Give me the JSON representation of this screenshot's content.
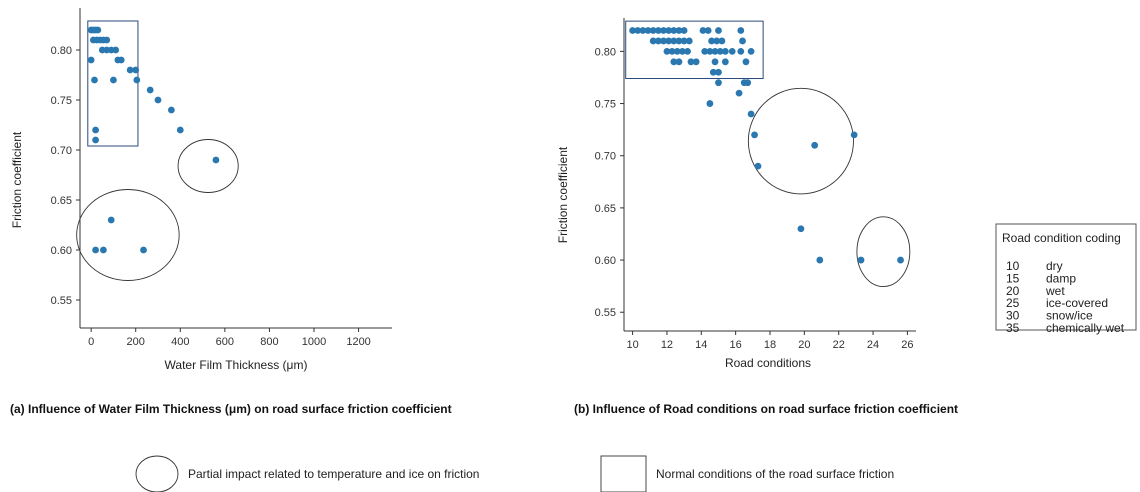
{
  "chart_data": [
    {
      "type": "scatter",
      "title": "",
      "xlabel": "Water Film Thickness (μm)",
      "ylabel": "Friction coefficient",
      "xlim": [
        -50,
        1350
      ],
      "ylim": [
        0.522,
        0.842
      ],
      "xticks": [
        "0",
        "200",
        "400",
        "600",
        "800",
        "1000",
        "1200"
      ],
      "yticks": [
        "0.55",
        "0.60",
        "0.65",
        "0.70",
        "0.75",
        "0.80"
      ],
      "grid": false,
      "marker_color": "#2b78b1",
      "caption": "(a) Influence of Water Film Thickness (μm) on road surface friction coefficient",
      "points": [
        {
          "x": 0,
          "y": 0.82
        },
        {
          "x": 10,
          "y": 0.82
        },
        {
          "x": 20,
          "y": 0.82
        },
        {
          "x": 30,
          "y": 0.82
        },
        {
          "x": 10,
          "y": 0.81
        },
        {
          "x": 25,
          "y": 0.81
        },
        {
          "x": 40,
          "y": 0.81
        },
        {
          "x": 55,
          "y": 0.81
        },
        {
          "x": 70,
          "y": 0.81
        },
        {
          "x": 50,
          "y": 0.8
        },
        {
          "x": 70,
          "y": 0.8
        },
        {
          "x": 90,
          "y": 0.8
        },
        {
          "x": 110,
          "y": 0.8
        },
        {
          "x": 0,
          "y": 0.79
        },
        {
          "x": 120,
          "y": 0.79
        },
        {
          "x": 135,
          "y": 0.79
        },
        {
          "x": 175,
          "y": 0.78
        },
        {
          "x": 200,
          "y": 0.78
        },
        {
          "x": 15,
          "y": 0.77
        },
        {
          "x": 100,
          "y": 0.77
        },
        {
          "x": 205,
          "y": 0.77
        },
        {
          "x": 265,
          "y": 0.76
        },
        {
          "x": 300,
          "y": 0.75
        },
        {
          "x": 360,
          "y": 0.74
        },
        {
          "x": 20,
          "y": 0.72
        },
        {
          "x": 400,
          "y": 0.72
        },
        {
          "x": 20,
          "y": 0.71
        },
        {
          "x": 560,
          "y": 0.69
        },
        {
          "x": 90,
          "y": 0.63
        },
        {
          "x": 20,
          "y": 0.6
        },
        {
          "x": 55,
          "y": 0.6
        },
        {
          "x": 235,
          "y": 0.6
        }
      ],
      "rect_region": {
        "x0": -15,
        "x1": 210,
        "y0": 0.704,
        "y1": 0.829
      },
      "circle_regions": [
        {
          "cx": 165,
          "cy": 0.615,
          "rx": 230,
          "ry": 0.0455
        },
        {
          "cx": 525,
          "cy": 0.684,
          "rx": 135,
          "ry": 0.0265
        }
      ]
    },
    {
      "type": "scatter",
      "title": "",
      "xlabel": "Road conditions",
      "ylabel": "Friction coefficient",
      "xlim": [
        9.5,
        26.5
      ],
      "ylim": [
        0.532,
        0.832
      ],
      "xticks": [
        "10",
        "12",
        "14",
        "16",
        "18",
        "20",
        "22",
        "24",
        "26"
      ],
      "yticks": [
        "0.55",
        "0.60",
        "0.65",
        "0.70",
        "0.75",
        "0.80"
      ],
      "grid": false,
      "marker_color": "#2b78b1",
      "caption": "(b) Influence of Road conditions on road surface friction coefficient",
      "points": [
        {
          "x": 10.0,
          "y": 0.82
        },
        {
          "x": 10.3,
          "y": 0.82
        },
        {
          "x": 10.6,
          "y": 0.82
        },
        {
          "x": 10.9,
          "y": 0.82
        },
        {
          "x": 11.2,
          "y": 0.82
        },
        {
          "x": 11.5,
          "y": 0.82
        },
        {
          "x": 11.8,
          "y": 0.82
        },
        {
          "x": 12.1,
          "y": 0.82
        },
        {
          "x": 12.4,
          "y": 0.82
        },
        {
          "x": 12.7,
          "y": 0.82
        },
        {
          "x": 13.0,
          "y": 0.82
        },
        {
          "x": 14.1,
          "y": 0.82
        },
        {
          "x": 14.4,
          "y": 0.82
        },
        {
          "x": 15.0,
          "y": 0.82
        },
        {
          "x": 16.3,
          "y": 0.82
        },
        {
          "x": 11.2,
          "y": 0.81
        },
        {
          "x": 11.5,
          "y": 0.81
        },
        {
          "x": 11.8,
          "y": 0.81
        },
        {
          "x": 12.1,
          "y": 0.81
        },
        {
          "x": 12.4,
          "y": 0.81
        },
        {
          "x": 12.7,
          "y": 0.81
        },
        {
          "x": 13.0,
          "y": 0.81
        },
        {
          "x": 13.3,
          "y": 0.81
        },
        {
          "x": 14.6,
          "y": 0.81
        },
        {
          "x": 14.9,
          "y": 0.81
        },
        {
          "x": 15.2,
          "y": 0.81
        },
        {
          "x": 16.4,
          "y": 0.81
        },
        {
          "x": 12.0,
          "y": 0.8
        },
        {
          "x": 12.3,
          "y": 0.8
        },
        {
          "x": 12.6,
          "y": 0.8
        },
        {
          "x": 12.9,
          "y": 0.8
        },
        {
          "x": 13.2,
          "y": 0.8
        },
        {
          "x": 14.2,
          "y": 0.8
        },
        {
          "x": 14.5,
          "y": 0.8
        },
        {
          "x": 14.8,
          "y": 0.8
        },
        {
          "x": 15.1,
          "y": 0.8
        },
        {
          "x": 15.4,
          "y": 0.8
        },
        {
          "x": 15.8,
          "y": 0.8
        },
        {
          "x": 16.3,
          "y": 0.8
        },
        {
          "x": 16.9,
          "y": 0.8
        },
        {
          "x": 12.4,
          "y": 0.79
        },
        {
          "x": 12.7,
          "y": 0.79
        },
        {
          "x": 13.4,
          "y": 0.79
        },
        {
          "x": 13.7,
          "y": 0.79
        },
        {
          "x": 14.8,
          "y": 0.79
        },
        {
          "x": 15.4,
          "y": 0.79
        },
        {
          "x": 16.6,
          "y": 0.79
        },
        {
          "x": 14.7,
          "y": 0.78
        },
        {
          "x": 15.0,
          "y": 0.78
        },
        {
          "x": 15.0,
          "y": 0.77
        },
        {
          "x": 16.5,
          "y": 0.77
        },
        {
          "x": 16.7,
          "y": 0.77
        },
        {
          "x": 16.2,
          "y": 0.76
        },
        {
          "x": 14.5,
          "y": 0.75
        },
        {
          "x": 16.9,
          "y": 0.74
        },
        {
          "x": 17.1,
          "y": 0.72
        },
        {
          "x": 22.9,
          "y": 0.72
        },
        {
          "x": 20.6,
          "y": 0.71
        },
        {
          "x": 17.3,
          "y": 0.69
        },
        {
          "x": 19.8,
          "y": 0.63
        },
        {
          "x": 20.9,
          "y": 0.6
        },
        {
          "x": 23.3,
          "y": 0.6
        },
        {
          "x": 25.6,
          "y": 0.6
        }
      ],
      "rect_region": {
        "x0": 9.6,
        "x1": 17.6,
        "y0": 0.774,
        "y1": 0.829
      },
      "circle_regions": [
        {
          "cx": 19.8,
          "cy": 0.714,
          "rx": 3.06,
          "ry": 0.0506
        },
        {
          "cx": 24.6,
          "cy": 0.608,
          "rx": 1.54,
          "ry": 0.0334
        }
      ]
    }
  ],
  "legend": {
    "title": "Road condition coding",
    "items": [
      {
        "code": "10",
        "label": "dry"
      },
      {
        "code": "15",
        "label": "damp"
      },
      {
        "code": "20",
        "label": "wet"
      },
      {
        "code": "25",
        "label": "ice-covered"
      },
      {
        "code": "30",
        "label": "snow/ice"
      },
      {
        "code": "35",
        "label": "chemically wet"
      }
    ]
  },
  "key": {
    "circle_label": "Partial impact related to temperature and ice on friction",
    "rect_label": "Normal conditions of the road surface friction"
  }
}
